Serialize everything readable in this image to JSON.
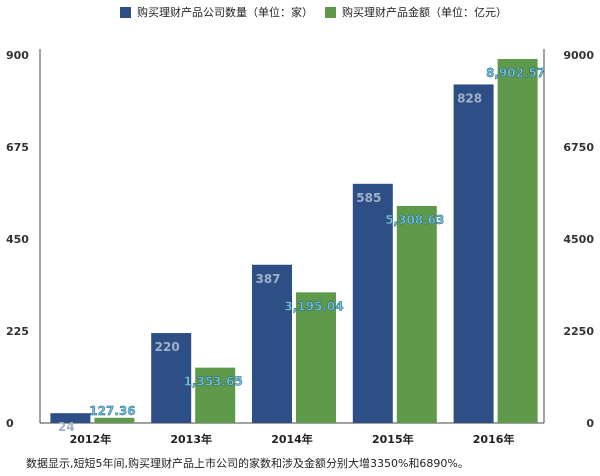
{
  "chart_data": {
    "type": "bar",
    "categories": [
      "2012年",
      "2013年",
      "2014年",
      "2015年",
      "2016年"
    ],
    "series": [
      {
        "name": "购买理财产品公司数量（单位：家）",
        "values": [
          24,
          220,
          387,
          585,
          828
        ],
        "labels": [
          "24",
          "220",
          "387",
          "585",
          "828"
        ],
        "axis": "left",
        "color": "#2e4f86"
      },
      {
        "name": "购买理财产品金额（单位：亿元）",
        "values": [
          127.36,
          1353.65,
          3195.04,
          5308.63,
          8902.57
        ],
        "labels": [
          "127.36",
          "1,353.65",
          "3,195.04",
          "5,308.63",
          "8,902.57"
        ],
        "axis": "right",
        "color": "#5f9a4b"
      }
    ],
    "y_left": {
      "range": [
        0,
        900
      ],
      "ticks": [
        "0",
        "225",
        "450",
        "675",
        "900"
      ]
    },
    "y_right": {
      "range": [
        0,
        9000
      ],
      "ticks": [
        "0",
        "2250",
        "4500",
        "6750",
        "9000"
      ]
    },
    "grid": false,
    "legend_position": "top"
  },
  "caption": "数据显示,短短5年间,购买理财产品上市公司的家数和涉及金额分别大增3350%和6890%。"
}
